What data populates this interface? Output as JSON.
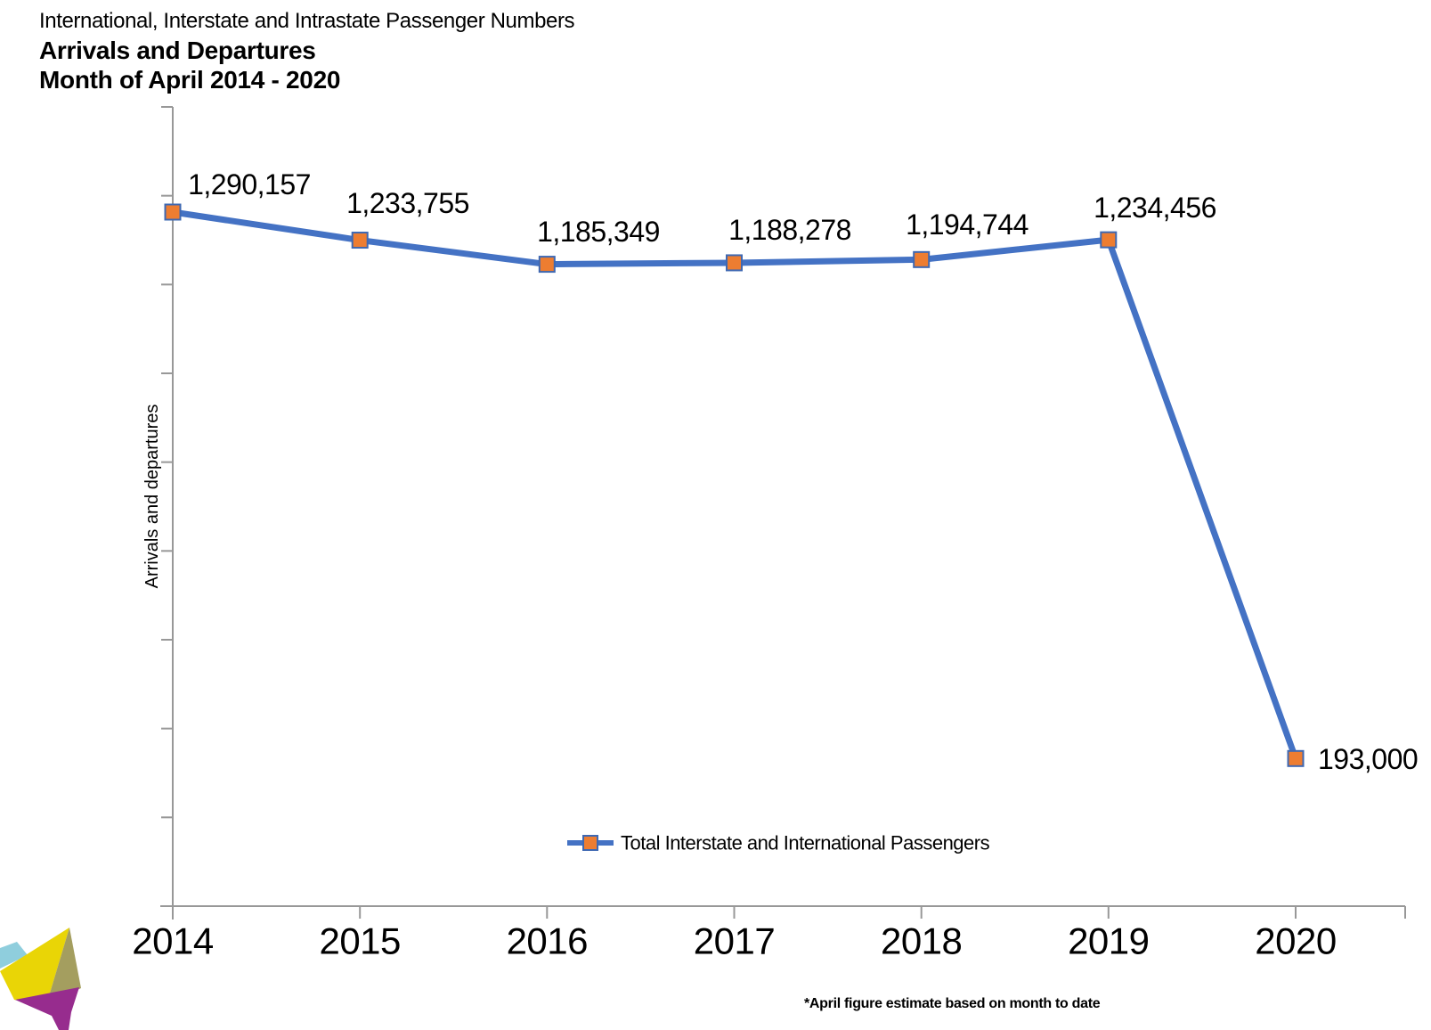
{
  "header": {
    "subtitle": "International, Interstate and Intrastate Passenger Numbers",
    "title": "Arrivals and Departures",
    "period": "Month of April 2014 - 2020"
  },
  "chart_data": {
    "type": "line",
    "title": "Arrivals and Departures, Month of April 2014 - 2020",
    "categories": [
      "2014",
      "2015",
      "2016",
      "2017",
      "2018",
      "2019",
      "2020"
    ],
    "series": [
      {
        "name": "Total Interstate and International Passengers",
        "values": [
          1290157,
          1233755,
          1185349,
          1188278,
          1194744,
          1234456,
          193000
        ],
        "labels": [
          "1,290,157",
          "1,233,755",
          "1,185,349",
          "1,188,278",
          "1,194,744",
          "1,234,456",
          "193,000"
        ]
      }
    ],
    "xlabel": "",
    "ylabel": "Arrivals and departures",
    "y_axis_tick_labels": [],
    "y_axis_major_ticks": 10,
    "grid": false,
    "marker": "square",
    "legend_position": "bottom-center-inside",
    "colors": {
      "line": "#4472C4",
      "marker_fill": "#ED7D31",
      "marker_border": "#3E68B2",
      "axis": "#989898",
      "text": "#000000"
    }
  },
  "legend": {
    "label": "Total Interstate and International Passengers"
  },
  "footnote": "*April figure estimate based on month to date",
  "logo": {
    "name": "faceted-origami-logo",
    "colors": {
      "sky": "#8FCEDD",
      "yellow": "#E9D506",
      "olive": "#A49E5F",
      "purple": "#972C8E"
    }
  }
}
